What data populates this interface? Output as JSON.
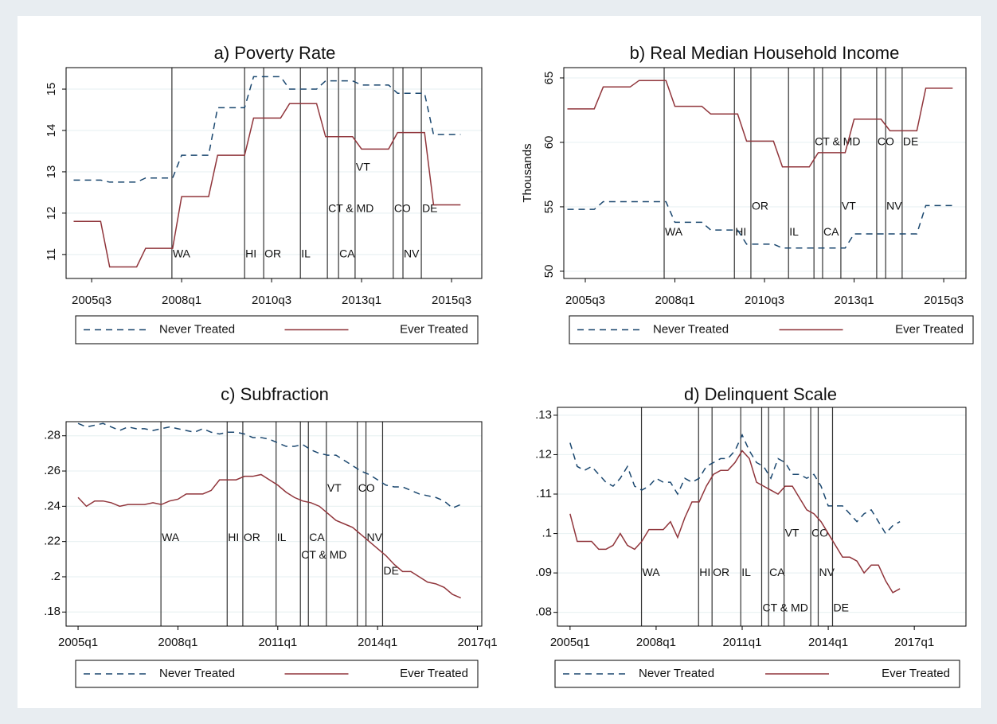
{
  "chart_data": [
    {
      "type": "line",
      "title": "a) Poverty Rate",
      "x": [
        2005,
        2005.75,
        2006,
        2006.75,
        2007,
        2007.75,
        2008,
        2008.75,
        2009,
        2009.75,
        2010,
        2010.75,
        2011,
        2011.75,
        2012,
        2012.75,
        2013,
        2013.75,
        2014,
        2014.75,
        2015,
        2015.75
      ],
      "series": [
        {
          "name": "Never Treated",
          "color": "#1a476f",
          "linestyle": "dashed",
          "values": [
            12.8,
            12.8,
            12.75,
            12.75,
            12.85,
            12.85,
            13.4,
            13.4,
            14.55,
            14.55,
            15.3,
            15.3,
            15.0,
            15.0,
            15.2,
            15.2,
            15.1,
            15.1,
            14.9,
            14.9,
            13.9,
            13.9
          ]
        },
        {
          "name": "Ever Treated",
          "color": "#90353b",
          "linestyle": "solid",
          "values": [
            11.8,
            11.8,
            10.7,
            10.7,
            11.15,
            11.15,
            12.4,
            12.4,
            13.4,
            13.4,
            14.3,
            14.3,
            14.65,
            14.65,
            13.85,
            13.85,
            13.55,
            13.55,
            13.95,
            13.95,
            12.2,
            12.2
          ]
        }
      ],
      "xlim": [
        2004.79,
        2016.34
      ],
      "ylim": [
        10.42,
        15.52
      ],
      "xticks": [
        {
          "value": 2005.5,
          "label": "2005q3"
        },
        {
          "value": 2008,
          "label": "2008q1"
        },
        {
          "value": 2010.5,
          "label": "2010q3"
        },
        {
          "value": 2013,
          "label": "2013q1"
        },
        {
          "value": 2015.5,
          "label": "2015q3"
        }
      ],
      "yticks": [
        11,
        12,
        13,
        14,
        15
      ],
      "grid": true,
      "events": [
        {
          "label": "WA",
          "x": 2007.73,
          "y": 11
        },
        {
          "label": "HI",
          "x": 2009.75,
          "y": 11
        },
        {
          "label": "OR",
          "x": 2010.28,
          "y": 11
        },
        {
          "label": "IL",
          "x": 2011.3,
          "y": 11
        },
        {
          "label": "CT & MD",
          "x": 2012.05,
          "y": 12.1
        },
        {
          "label": "CA",
          "x": 2012.36,
          "y": 11
        },
        {
          "label": "VT",
          "x": 2012.82,
          "y": 13.1
        },
        {
          "label": "CO",
          "x": 2013.88,
          "y": 12.1
        },
        {
          "label": "NV",
          "x": 2014.15,
          "y": 11
        },
        {
          "label": "DE",
          "x": 2014.66,
          "y": 12.1
        }
      ]
    },
    {
      "type": "line",
      "title": "b) Real Median Household Income",
      "ylabel": "Thousands",
      "x": [
        2005,
        2005.75,
        2006,
        2006.75,
        2007,
        2007.75,
        2008,
        2008.75,
        2009,
        2009.75,
        2010,
        2010.75,
        2011,
        2011.75,
        2012,
        2012.75,
        2013,
        2013.75,
        2014,
        2014.75,
        2015,
        2015.75
      ],
      "series": [
        {
          "name": "Never Treated",
          "color": "#1a476f",
          "linestyle": "dashed",
          "values": [
            54.8,
            54.8,
            55.4,
            55.4,
            55.4,
            55.4,
            53.8,
            53.8,
            53.2,
            53.2,
            52.1,
            52.1,
            51.8,
            51.8,
            51.8,
            51.8,
            52.9,
            52.9,
            52.9,
            52.9,
            55.1,
            55.1
          ]
        },
        {
          "name": "Ever Treated",
          "color": "#90353b",
          "linestyle": "solid",
          "values": [
            62.6,
            62.6,
            64.3,
            64.3,
            64.8,
            64.8,
            62.8,
            62.8,
            62.2,
            62.2,
            60.1,
            60.1,
            58.1,
            58.1,
            59.2,
            59.2,
            61.8,
            61.8,
            60.9,
            60.9,
            64.2,
            64.2
          ]
        }
      ],
      "xlim": [
        2004.9,
        2016.12
      ],
      "ylim": [
        49.44,
        65.8
      ],
      "xticks": [
        {
          "value": 2005.5,
          "label": "2005q3"
        },
        {
          "value": 2008,
          "label": "2008q1"
        },
        {
          "value": 2010.5,
          "label": "2010q3"
        },
        {
          "value": 2013,
          "label": "2013q1"
        },
        {
          "value": 2015.5,
          "label": "2015q3"
        }
      ],
      "yticks": [
        50,
        55,
        60,
        65
      ],
      "grid": true,
      "events": [
        {
          "label": "WA",
          "x": 2007.7,
          "y": 53
        },
        {
          "label": "HI",
          "x": 2009.66,
          "y": 53
        },
        {
          "label": "OR",
          "x": 2010.12,
          "y": 55
        },
        {
          "label": "IL",
          "x": 2011.17,
          "y": 53
        },
        {
          "label": "CT & MD",
          "x": 2011.88,
          "y": 60
        },
        {
          "label": "CA",
          "x": 2012.12,
          "y": 53
        },
        {
          "label": "VT",
          "x": 2012.63,
          "y": 55
        },
        {
          "label": "CO",
          "x": 2013.63,
          "y": 60
        },
        {
          "label": "NV",
          "x": 2013.88,
          "y": 55
        },
        {
          "label": "DE",
          "x": 2014.34,
          "y": 60
        }
      ]
    },
    {
      "type": "line",
      "title": "c) Subfraction",
      "x": [
        2005,
        2005.25,
        2005.5,
        2005.75,
        2006,
        2006.25,
        2006.5,
        2006.75,
        2007,
        2007.25,
        2007.5,
        2007.75,
        2008,
        2008.25,
        2008.5,
        2008.75,
        2009,
        2009.25,
        2009.5,
        2009.75,
        2010,
        2010.25,
        2010.5,
        2010.75,
        2011,
        2011.25,
        2011.5,
        2011.75,
        2012,
        2012.25,
        2012.5,
        2012.75,
        2013,
        2013.25,
        2013.5,
        2013.75,
        2014,
        2014.25,
        2014.5,
        2014.75,
        2015,
        2015.25,
        2015.5,
        2015.75,
        2016,
        2016.25,
        2016.5
      ],
      "series": [
        {
          "name": "Never Treated",
          "color": "#1a476f",
          "linestyle": "dashed",
          "values": [
            0.287,
            0.285,
            0.286,
            0.287,
            0.285,
            0.283,
            0.285,
            0.284,
            0.284,
            0.283,
            0.284,
            0.285,
            0.284,
            0.283,
            0.282,
            0.284,
            0.282,
            0.281,
            0.282,
            0.282,
            0.281,
            0.279,
            0.279,
            0.278,
            0.276,
            0.274,
            0.274,
            0.275,
            0.272,
            0.27,
            0.269,
            0.269,
            0.266,
            0.263,
            0.26,
            0.258,
            0.255,
            0.252,
            0.251,
            0.251,
            0.249,
            0.247,
            0.246,
            0.245,
            0.243,
            0.239,
            0.241
          ]
        },
        {
          "name": "Ever Treated",
          "color": "#90353b",
          "linestyle": "solid",
          "values": [
            0.245,
            0.24,
            0.243,
            0.243,
            0.242,
            0.24,
            0.241,
            0.241,
            0.241,
            0.242,
            0.241,
            0.243,
            0.244,
            0.247,
            0.247,
            0.247,
            0.249,
            0.255,
            0.255,
            0.255,
            0.257,
            0.257,
            0.258,
            0.255,
            0.252,
            0.248,
            0.245,
            0.243,
            0.242,
            0.24,
            0.236,
            0.232,
            0.23,
            0.228,
            0.224,
            0.22,
            0.216,
            0.212,
            0.207,
            0.203,
            0.203,
            0.2,
            0.197,
            0.196,
            0.194,
            0.19,
            0.188
          ]
        }
      ],
      "xlim": [
        2004.64,
        2017.13
      ],
      "ylim": [
        0.172,
        0.288
      ],
      "xticks": [
        {
          "value": 2005,
          "label": "2005q1"
        },
        {
          "value": 2008,
          "label": "2008q1"
        },
        {
          "value": 2011,
          "label": "2011q1"
        },
        {
          "value": 2014,
          "label": "2014q1"
        },
        {
          "value": 2017,
          "label": "2017q1"
        }
      ],
      "yticks": [
        {
          "value": 0.18,
          "label": ".18"
        },
        {
          "value": 0.2,
          "label": ".2"
        },
        {
          "value": 0.22,
          "label": ".22"
        },
        {
          "value": 0.24,
          "label": ".24"
        },
        {
          "value": 0.26,
          "label": ".26"
        },
        {
          "value": 0.28,
          "label": ".28"
        }
      ],
      "grid": true,
      "events": [
        {
          "label": "WA",
          "x": 2007.49,
          "y": 0.222
        },
        {
          "label": "HI",
          "x": 2009.48,
          "y": 0.222
        },
        {
          "label": "OR",
          "x": 2009.95,
          "y": 0.222
        },
        {
          "label": "IL",
          "x": 2010.95,
          "y": 0.222
        },
        {
          "label": "CT & MD",
          "x": 2011.68,
          "y": 0.212
        },
        {
          "label": "CA",
          "x": 2011.92,
          "y": 0.222
        },
        {
          "label": "VT",
          "x": 2012.46,
          "y": 0.25
        },
        {
          "label": "CO",
          "x": 2013.39,
          "y": 0.25
        },
        {
          "label": "NV",
          "x": 2013.65,
          "y": 0.222
        },
        {
          "label": "DE",
          "x": 2014.15,
          "y": 0.203
        }
      ]
    },
    {
      "type": "line",
      "title": "d) Delinquent Scale",
      "x": [
        2005,
        2005.25,
        2005.5,
        2005.75,
        2006,
        2006.25,
        2006.5,
        2006.75,
        2007,
        2007.25,
        2007.5,
        2007.75,
        2008,
        2008.25,
        2008.5,
        2008.75,
        2009,
        2009.25,
        2009.5,
        2009.75,
        2010,
        2010.25,
        2010.5,
        2010.75,
        2011,
        2011.25,
        2011.5,
        2011.75,
        2012,
        2012.25,
        2012.5,
        2012.75,
        2013,
        2013.25,
        2013.5,
        2013.75,
        2014,
        2014.25,
        2014.5,
        2014.75,
        2015,
        2015.25,
        2015.5,
        2015.75,
        2016,
        2016.25,
        2016.5
      ],
      "series": [
        {
          "name": "Never Treated",
          "color": "#1a476f",
          "linestyle": "dashed",
          "values": [
            0.123,
            0.117,
            0.116,
            0.117,
            0.115,
            0.113,
            0.112,
            0.114,
            0.117,
            0.112,
            0.111,
            0.112,
            0.114,
            0.113,
            0.113,
            0.11,
            0.114,
            0.113,
            0.114,
            0.117,
            0.118,
            0.119,
            0.119,
            0.121,
            0.125,
            0.121,
            0.118,
            0.117,
            0.114,
            0.119,
            0.118,
            0.115,
            0.115,
            0.114,
            0.115,
            0.112,
            0.107,
            0.107,
            0.107,
            0.105,
            0.103,
            0.105,
            0.106,
            0.103,
            0.1,
            0.102,
            0.103
          ]
        },
        {
          "name": "Ever Treated",
          "color": "#90353b",
          "linestyle": "solid",
          "values": [
            0.105,
            0.098,
            0.098,
            0.098,
            0.096,
            0.096,
            0.097,
            0.1,
            0.097,
            0.096,
            0.098,
            0.101,
            0.101,
            0.101,
            0.103,
            0.099,
            0.104,
            0.108,
            0.108,
            0.112,
            0.115,
            0.116,
            0.116,
            0.118,
            0.121,
            0.119,
            0.113,
            0.112,
            0.111,
            0.11,
            0.112,
            0.112,
            0.109,
            0.106,
            0.105,
            0.103,
            0.1,
            0.097,
            0.094,
            0.094,
            0.093,
            0.09,
            0.092,
            0.092,
            0.088,
            0.085,
            0.086
          ]
        }
      ],
      "xlim": [
        2004.56,
        2018.8
      ],
      "ylim": [
        0.0765,
        0.132
      ],
      "xticks": [
        {
          "value": 2005,
          "label": "2005q1"
        },
        {
          "value": 2008,
          "label": "2008q1"
        },
        {
          "value": 2011,
          "label": "2011q1"
        },
        {
          "value": 2014,
          "label": "2014q1"
        },
        {
          "value": 2017,
          "label": "2017q1"
        }
      ],
      "yticks": [
        {
          "value": 0.08,
          "label": ".08"
        },
        {
          "value": 0.09,
          "label": ".09"
        },
        {
          "value": 0.1,
          "label": ".1"
        },
        {
          "value": 0.11,
          "label": ".11"
        },
        {
          "value": 0.12,
          "label": ".12"
        },
        {
          "value": 0.13,
          "label": ".13"
        }
      ],
      "grid": true,
      "events": [
        {
          "label": "WA",
          "x": 2007.49,
          "y": 0.09
        },
        {
          "label": "HI",
          "x": 2009.48,
          "y": 0.09
        },
        {
          "label": "OR",
          "x": 2009.95,
          "y": 0.09
        },
        {
          "label": "IL",
          "x": 2010.95,
          "y": 0.09
        },
        {
          "label": "CT & MD",
          "x": 2011.68,
          "y": 0.081
        },
        {
          "label": "CA",
          "x": 2011.92,
          "y": 0.09
        },
        {
          "label": "VT",
          "x": 2012.46,
          "y": 0.1
        },
        {
          "label": "CO",
          "x": 2013.39,
          "y": 0.1
        },
        {
          "label": "NV",
          "x": 2013.65,
          "y": 0.09
        },
        {
          "label": "DE",
          "x": 2014.15,
          "y": 0.081
        }
      ]
    }
  ]
}
